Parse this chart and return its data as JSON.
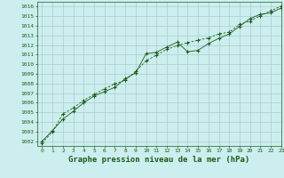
{
  "title": "Graphe pression niveau de la mer (hPa)",
  "xlim": [
    -0.5,
    23
  ],
  "ylim": [
    1001.5,
    1016.5
  ],
  "yticks": [
    1002,
    1003,
    1004,
    1005,
    1006,
    1007,
    1008,
    1009,
    1010,
    1011,
    1012,
    1013,
    1014,
    1015,
    1016
  ],
  "xticks": [
    0,
    1,
    2,
    3,
    4,
    5,
    6,
    7,
    8,
    9,
    10,
    11,
    12,
    13,
    14,
    15,
    16,
    17,
    18,
    19,
    20,
    21,
    22,
    23
  ],
  "bg_color": "#cceeee",
  "grid_color": "#aacccc",
  "line_color": "#1a5c1a",
  "line1_x": [
    0,
    1,
    2,
    3,
    4,
    5,
    6,
    7,
    8,
    9,
    10,
    11,
    12,
    13,
    14,
    15,
    16,
    17,
    18,
    19,
    20,
    21,
    22,
    23
  ],
  "line1_y": [
    1002.0,
    1003.1,
    1004.3,
    1005.1,
    1006.0,
    1006.7,
    1007.15,
    1007.6,
    1008.5,
    1009.1,
    1011.1,
    1011.25,
    1011.8,
    1012.3,
    1011.3,
    1011.45,
    1012.15,
    1012.7,
    1013.15,
    1013.95,
    1014.75,
    1015.2,
    1015.35,
    1015.85
  ],
  "line2_x": [
    0,
    1,
    2,
    3,
    4,
    5,
    6,
    7,
    8,
    9,
    10,
    11,
    12,
    13,
    14,
    15,
    16,
    17,
    18,
    19,
    20,
    21,
    22,
    23
  ],
  "line2_y": [
    1001.8,
    1003.0,
    1004.85,
    1005.45,
    1006.25,
    1006.85,
    1007.45,
    1007.95,
    1008.35,
    1009.25,
    1010.35,
    1010.95,
    1011.55,
    1011.95,
    1012.25,
    1012.5,
    1012.75,
    1013.15,
    1013.35,
    1014.15,
    1014.5,
    1015.05,
    1015.55,
    1016.05
  ],
  "marker": "+",
  "markersize": 3.0,
  "linewidth": 0.6,
  "title_fontsize": 6.5,
  "tick_fontsize": 4.5,
  "title_color": "#1a5c1a",
  "tick_color": "#1a5c1a",
  "spine_color": "#1a5c1a"
}
